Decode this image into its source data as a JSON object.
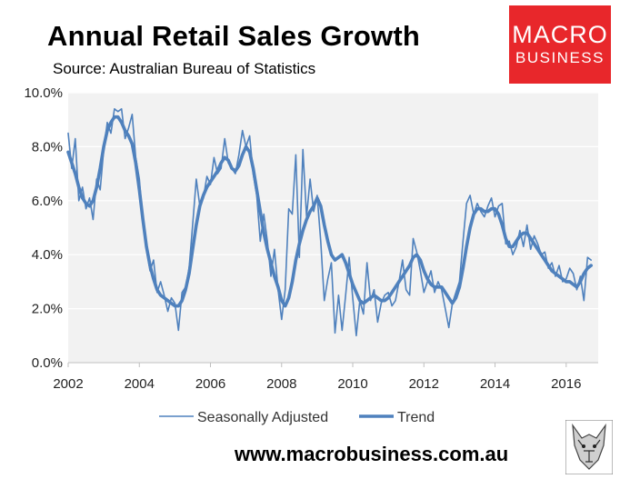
{
  "title": "Annual Retail Sales Growth",
  "subtitle": "Source: Australian Bureau of Statistics",
  "logo": {
    "line1": "MACRO",
    "line2": "BUSINESS"
  },
  "footer": "www.macrobusiness.com.au",
  "colors": {
    "line": "#4f81bd",
    "plot_bg": "#f2f2f2",
    "grid": "#ffffff",
    "logo_bg": "#e8272b"
  },
  "icons": {
    "mascot": "wolf-head-icon"
  },
  "chart_data": {
    "type": "line",
    "title": "Annual Retail Sales Growth",
    "subtitle": "Source: Australian Bureau of Statistics",
    "xlabel": "",
    "ylabel": "",
    "xlim": [
      2002,
      2016.9
    ],
    "ylim": [
      0,
      10
    ],
    "y_ticks": [
      0,
      2,
      4,
      6,
      8,
      10
    ],
    "y_tick_labels": [
      "0.0%",
      "2.0%",
      "4.0%",
      "6.0%",
      "8.0%",
      "10.0%"
    ],
    "x_ticks": [
      2002,
      2004,
      2006,
      2008,
      2010,
      2012,
      2014,
      2016
    ],
    "x_tick_labels": [
      "2002",
      "2004",
      "2006",
      "2008",
      "2010",
      "2012",
      "2014",
      "2016"
    ],
    "grid": true,
    "legend": "bottom",
    "series": [
      {
        "name": "Seasonally Adjusted",
        "style": "thin",
        "x": [
          2002.0,
          2002.1,
          2002.2,
          2002.3,
          2002.4,
          2002.5,
          2002.6,
          2002.7,
          2002.8,
          2002.9,
          2003.0,
          2003.1,
          2003.2,
          2003.3,
          2003.4,
          2003.5,
          2003.6,
          2003.7,
          2003.8,
          2003.9,
          2004.0,
          2004.1,
          2004.2,
          2004.3,
          2004.4,
          2004.5,
          2004.6,
          2004.7,
          2004.8,
          2004.9,
          2005.0,
          2005.1,
          2005.2,
          2005.3,
          2005.4,
          2005.5,
          2005.6,
          2005.7,
          2005.8,
          2005.9,
          2006.0,
          2006.1,
          2006.2,
          2006.3,
          2006.4,
          2006.5,
          2006.6,
          2006.7,
          2006.8,
          2006.9,
          2007.0,
          2007.1,
          2007.2,
          2007.3,
          2007.4,
          2007.5,
          2007.6,
          2007.7,
          2007.8,
          2007.9,
          2008.0,
          2008.1,
          2008.2,
          2008.3,
          2008.4,
          2008.5,
          2008.6,
          2008.7,
          2008.8,
          2008.9,
          2009.0,
          2009.1,
          2009.2,
          2009.3,
          2009.4,
          2009.5,
          2009.6,
          2009.7,
          2009.8,
          2009.9,
          2010.0,
          2010.1,
          2010.2,
          2010.3,
          2010.4,
          2010.5,
          2010.6,
          2010.7,
          2010.8,
          2010.9,
          2011.0,
          2011.1,
          2011.2,
          2011.3,
          2011.4,
          2011.5,
          2011.6,
          2011.7,
          2011.8,
          2011.9,
          2012.0,
          2012.1,
          2012.2,
          2012.3,
          2012.4,
          2012.5,
          2012.6,
          2012.7,
          2012.8,
          2012.9,
          2013.0,
          2013.1,
          2013.2,
          2013.3,
          2013.4,
          2013.5,
          2013.6,
          2013.7,
          2013.8,
          2013.9,
          2014.0,
          2014.1,
          2014.2,
          2014.3,
          2014.4,
          2014.5,
          2014.6,
          2014.7,
          2014.8,
          2014.9,
          2015.0,
          2015.1,
          2015.2,
          2015.3,
          2015.4,
          2015.5,
          2015.6,
          2015.7,
          2015.8,
          2015.9,
          2016.0,
          2016.1,
          2016.2,
          2016.3,
          2016.4,
          2016.5,
          2016.6,
          2016.7
        ],
        "values": [
          8.5,
          7.2,
          8.3,
          6.0,
          6.5,
          5.7,
          6.1,
          5.3,
          6.8,
          6.4,
          7.9,
          8.9,
          8.5,
          9.4,
          9.3,
          9.4,
          8.3,
          8.7,
          9.2,
          7.6,
          6.8,
          5.2,
          4.2,
          3.4,
          3.8,
          2.6,
          3.0,
          2.5,
          1.9,
          2.4,
          2.2,
          1.2,
          2.6,
          2.8,
          3.5,
          5.1,
          6.8,
          5.8,
          6.1,
          6.9,
          6.6,
          7.6,
          7.0,
          7.2,
          8.3,
          7.4,
          7.2,
          7.0,
          7.7,
          8.6,
          8.0,
          8.4,
          7.0,
          6.2,
          4.5,
          5.5,
          4.5,
          3.2,
          4.2,
          2.7,
          1.6,
          2.7,
          5.7,
          5.5,
          7.7,
          3.9,
          7.9,
          5.4,
          6.8,
          5.6,
          6.2,
          4.5,
          2.3,
          3.1,
          3.7,
          1.1,
          2.5,
          1.2,
          2.5,
          3.9,
          2.4,
          1.0,
          2.3,
          1.8,
          3.7,
          2.3,
          2.7,
          1.5,
          2.2,
          2.5,
          2.6,
          2.1,
          2.3,
          3.0,
          3.8,
          2.7,
          2.5,
          4.6,
          4.1,
          3.4,
          2.6,
          3.0,
          3.4,
          2.6,
          3.0,
          2.7,
          2.0,
          1.3,
          2.2,
          2.6,
          3.0,
          4.5,
          5.9,
          6.2,
          5.5,
          5.9,
          5.6,
          5.4,
          5.8,
          6.1,
          5.4,
          5.8,
          5.9,
          4.4,
          4.5,
          4.0,
          4.3,
          4.9,
          4.3,
          5.1,
          4.2,
          4.7,
          4.4,
          4.0,
          4.1,
          3.5,
          3.7,
          3.2,
          3.6,
          3.0,
          3.1,
          3.5,
          3.3,
          2.7,
          3.2,
          2.3,
          3.9,
          3.8
        ]
      },
      {
        "name": "Trend",
        "style": "thick",
        "x": [
          2002.0,
          2002.1,
          2002.2,
          2002.3,
          2002.4,
          2002.5,
          2002.6,
          2002.7,
          2002.8,
          2002.9,
          2003.0,
          2003.1,
          2003.2,
          2003.3,
          2003.4,
          2003.5,
          2003.6,
          2003.7,
          2003.8,
          2003.9,
          2004.0,
          2004.1,
          2004.2,
          2004.3,
          2004.4,
          2004.5,
          2004.6,
          2004.7,
          2004.8,
          2004.9,
          2005.0,
          2005.1,
          2005.2,
          2005.3,
          2005.4,
          2005.5,
          2005.6,
          2005.7,
          2005.8,
          2005.9,
          2006.0,
          2006.1,
          2006.2,
          2006.3,
          2006.4,
          2006.5,
          2006.6,
          2006.7,
          2006.8,
          2006.9,
          2007.0,
          2007.1,
          2007.2,
          2007.3,
          2007.4,
          2007.5,
          2007.6,
          2007.7,
          2007.8,
          2007.9,
          2008.0,
          2008.1,
          2008.2,
          2008.3,
          2008.4,
          2008.5,
          2008.6,
          2008.7,
          2008.8,
          2008.9,
          2009.0,
          2009.1,
          2009.2,
          2009.3,
          2009.4,
          2009.5,
          2009.6,
          2009.7,
          2009.8,
          2009.9,
          2010.0,
          2010.1,
          2010.2,
          2010.3,
          2010.4,
          2010.5,
          2010.6,
          2010.7,
          2010.8,
          2010.9,
          2011.0,
          2011.1,
          2011.2,
          2011.3,
          2011.4,
          2011.5,
          2011.6,
          2011.7,
          2011.8,
          2011.9,
          2012.0,
          2012.1,
          2012.2,
          2012.3,
          2012.4,
          2012.5,
          2012.6,
          2012.7,
          2012.8,
          2012.9,
          2013.0,
          2013.1,
          2013.2,
          2013.3,
          2013.4,
          2013.5,
          2013.6,
          2013.7,
          2013.8,
          2013.9,
          2014.0,
          2014.1,
          2014.2,
          2014.3,
          2014.4,
          2014.5,
          2014.6,
          2014.7,
          2014.8,
          2014.9,
          2015.0,
          2015.1,
          2015.2,
          2015.3,
          2015.4,
          2015.5,
          2015.6,
          2015.7,
          2015.8,
          2015.9,
          2016.0,
          2016.1,
          2016.2,
          2016.3,
          2016.4,
          2016.5,
          2016.6,
          2016.7
        ],
        "values": [
          7.8,
          7.4,
          7.0,
          6.5,
          6.1,
          5.9,
          5.8,
          6.0,
          6.5,
          7.2,
          8.0,
          8.6,
          8.9,
          9.1,
          9.1,
          8.9,
          8.6,
          8.4,
          8.1,
          7.4,
          6.4,
          5.3,
          4.3,
          3.6,
          3.1,
          2.7,
          2.5,
          2.4,
          2.3,
          2.2,
          2.1,
          2.1,
          2.3,
          2.7,
          3.3,
          4.2,
          5.1,
          5.8,
          6.2,
          6.5,
          6.7,
          6.9,
          7.1,
          7.4,
          7.6,
          7.5,
          7.2,
          7.1,
          7.3,
          7.7,
          8.0,
          7.8,
          7.2,
          6.4,
          5.6,
          4.8,
          4.2,
          3.7,
          3.2,
          2.8,
          2.3,
          2.1,
          2.4,
          3.0,
          3.8,
          4.4,
          4.9,
          5.3,
          5.6,
          5.8,
          6.1,
          5.8,
          5.1,
          4.5,
          4.0,
          3.8,
          3.9,
          4.0,
          3.7,
          3.3,
          2.9,
          2.6,
          2.3,
          2.2,
          2.3,
          2.4,
          2.5,
          2.4,
          2.3,
          2.3,
          2.4,
          2.6,
          2.8,
          3.0,
          3.2,
          3.4,
          3.6,
          3.9,
          4.0,
          3.8,
          3.4,
          3.1,
          2.9,
          2.8,
          2.8,
          2.8,
          2.6,
          2.4,
          2.2,
          2.4,
          2.8,
          3.5,
          4.3,
          5.0,
          5.5,
          5.7,
          5.7,
          5.6,
          5.6,
          5.7,
          5.7,
          5.5,
          5.1,
          4.6,
          4.3,
          4.3,
          4.5,
          4.7,
          4.8,
          4.8,
          4.6,
          4.4,
          4.2,
          4.0,
          3.8,
          3.6,
          3.4,
          3.3,
          3.2,
          3.1,
          3.0,
          3.0,
          2.9,
          2.8,
          3.0,
          3.3,
          3.5,
          3.6
        ]
      }
    ]
  }
}
